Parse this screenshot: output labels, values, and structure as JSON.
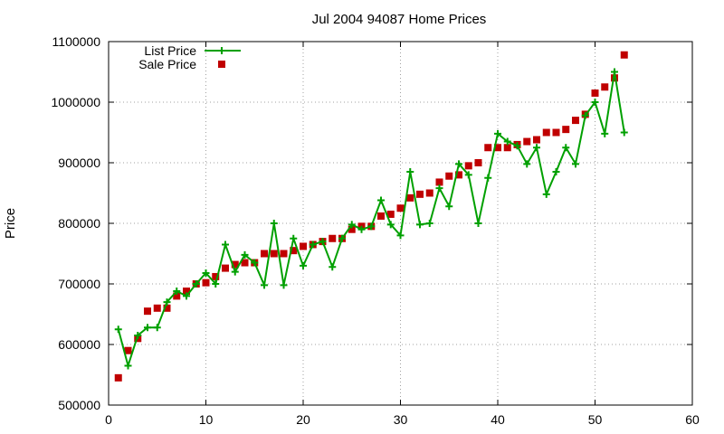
{
  "chart_data": {
    "type": "line",
    "title": "Jul 2004 94087 Home Prices",
    "xlabel": "",
    "ylabel": "Price",
    "xlim": [
      0,
      60
    ],
    "ylim": [
      500000,
      1100000
    ],
    "x_ticks": [
      0,
      10,
      20,
      30,
      40,
      50,
      60
    ],
    "y_ticks": [
      500000,
      600000,
      700000,
      800000,
      900000,
      1000000,
      1100000
    ],
    "grid": true,
    "legend_position": "top-left",
    "series": [
      {
        "name": "List Price",
        "style": "lines+points",
        "color": "#00a000",
        "marker": "plus",
        "x": [
          1,
          2,
          3,
          4,
          5,
          6,
          7,
          8,
          9,
          10,
          11,
          12,
          13,
          14,
          15,
          16,
          17,
          18,
          19,
          20,
          21,
          22,
          23,
          24,
          25,
          26,
          27,
          28,
          29,
          30,
          31,
          32,
          33,
          34,
          35,
          36,
          37,
          38,
          39,
          40,
          41,
          42,
          43,
          44,
          45,
          46,
          47,
          48,
          49,
          50,
          51,
          52,
          53
        ],
        "y": [
          625000,
          565000,
          615000,
          628000,
          628000,
          670000,
          688000,
          680000,
          700000,
          718000,
          700000,
          765000,
          720000,
          748000,
          735000,
          698000,
          800000,
          698000,
          775000,
          730000,
          765000,
          770000,
          728000,
          775000,
          798000,
          790000,
          795000,
          838000,
          798000,
          780000,
          885000,
          798000,
          800000,
          858000,
          828000,
          898000,
          880000,
          800000,
          875000,
          948000,
          935000,
          928000,
          898000,
          925000,
          848000,
          885000,
          925000,
          898000,
          978000,
          1000000,
          948000,
          1050000,
          950000
        ]
      },
      {
        "name": "Sale Price",
        "style": "points",
        "color": "#c00000",
        "marker": "square",
        "x": [
          1,
          2,
          3,
          4,
          5,
          6,
          7,
          8,
          9,
          10,
          11,
          12,
          13,
          14,
          15,
          16,
          17,
          18,
          19,
          20,
          21,
          22,
          23,
          24,
          25,
          26,
          27,
          28,
          29,
          30,
          31,
          32,
          33,
          34,
          35,
          36,
          37,
          38,
          39,
          40,
          41,
          42,
          43,
          44,
          45,
          46,
          47,
          48,
          49,
          50,
          51,
          52,
          53
        ],
        "y": [
          545000,
          590000,
          610000,
          655000,
          660000,
          660000,
          680000,
          688000,
          700000,
          702000,
          712000,
          726000,
          732000,
          735000,
          735000,
          750000,
          750000,
          750000,
          755000,
          762000,
          765000,
          770000,
          775000,
          775000,
          790000,
          795000,
          795000,
          812000,
          815000,
          825000,
          842000,
          848000,
          850000,
          868000,
          878000,
          880000,
          895000,
          900000,
          925000,
          925000,
          925000,
          930000,
          935000,
          938000,
          950000,
          950000,
          955000,
          970000,
          980000,
          1015000,
          1025000,
          1040000,
          1078000
        ]
      }
    ]
  }
}
